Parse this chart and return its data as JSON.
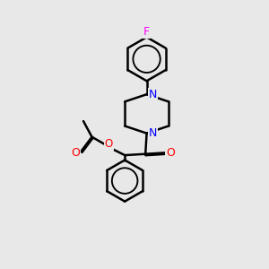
{
  "background_color": "#e8e8e8",
  "bond_color": "#000000",
  "N_color": "#0000ff",
  "O_color": "#ff0000",
  "F_color": "#ff00ff",
  "line_width": 1.8,
  "dbo": 0.055,
  "xlim": [
    0,
    10
  ],
  "ylim": [
    0,
    11
  ]
}
